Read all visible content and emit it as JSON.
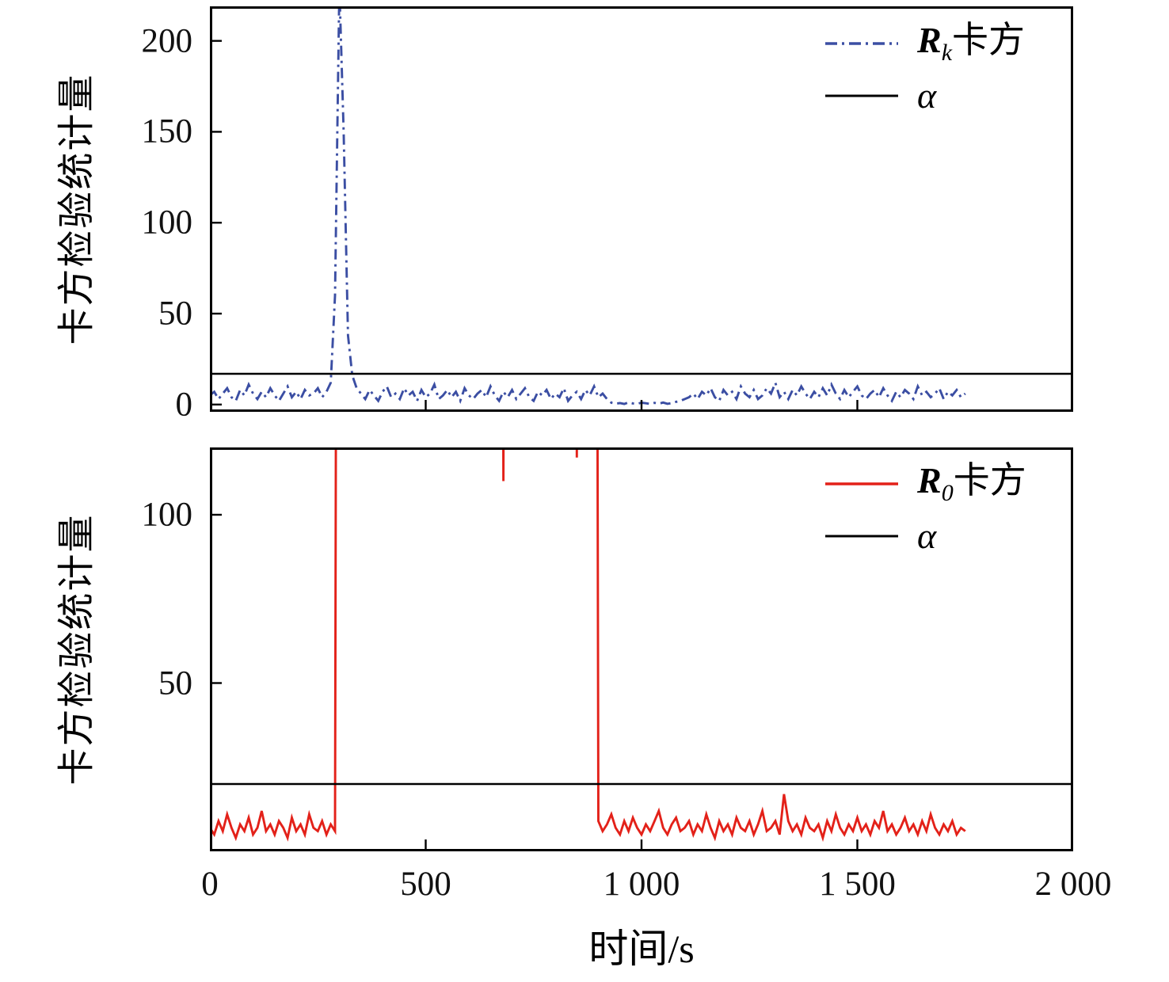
{
  "figure": {
    "background": "#ffffff"
  },
  "chart_data": [
    {
      "type": "line",
      "title": "",
      "ylabel": "卡方检验统计量",
      "xlabel": "",
      "xlim": [
        0,
        2000
      ],
      "ylim": [
        -4,
        219
      ],
      "grid": false,
      "legend_position": "upper-right-inside",
      "x_ticks": [
        500,
        1000,
        1500
      ],
      "y_ticks": [
        0,
        50,
        100,
        150,
        200
      ],
      "y_tick_labels": [
        "0",
        "50",
        "100",
        "150",
        "200"
      ],
      "legend": [
        {
          "label_main": "R",
          "label_sub": "k",
          "label_suffix": "卡方"
        },
        {
          "label": "α"
        }
      ],
      "series": [
        {
          "key": "rk-chi-square",
          "name": "Rk卡方",
          "color": "#3b4ea3",
          "style": "dashdot",
          "x0": 0,
          "dx": 10,
          "values": [
            5,
            7,
            3,
            6,
            9,
            4,
            2,
            8,
            5,
            11,
            6,
            3,
            7,
            4,
            9,
            5,
            2,
            6,
            10,
            4,
            7,
            3,
            8,
            5,
            6,
            9,
            4,
            7,
            12,
            60,
            230,
            150,
            38,
            16,
            9,
            6,
            3,
            8,
            5,
            2,
            7,
            10,
            4,
            6,
            3,
            9,
            5,
            7,
            2,
            8,
            4,
            6,
            11,
            3,
            5,
            8,
            4,
            7,
            2,
            9,
            5,
            3,
            6,
            8,
            4,
            10,
            5,
            2,
            7,
            4,
            8,
            3,
            6,
            9,
            4,
            2,
            7,
            5,
            8,
            3,
            6,
            4,
            9,
            2,
            5,
            7,
            3,
            8,
            5,
            10,
            4,
            6,
            3,
            1,
            0.5,
            0.8,
            0.3,
            1.2,
            0.6,
            0.4,
            1,
            0.7,
            0.3,
            0.9,
            0.5,
            1.1,
            0.4,
            0.8,
            1.5,
            2,
            3,
            4,
            6,
            3,
            7,
            5,
            9,
            4,
            2,
            8,
            5,
            7,
            3,
            10,
            6,
            4,
            8,
            3,
            5,
            9,
            6,
            12,
            4,
            7,
            3,
            8,
            5,
            10,
            6,
            3,
            7,
            4,
            9,
            5,
            11,
            6,
            3,
            8,
            4,
            7,
            10,
            5,
            3,
            6,
            8,
            4,
            9,
            5,
            2,
            7,
            4,
            8,
            6,
            3,
            10,
            5,
            7,
            4,
            6,
            9,
            3,
            7,
            5,
            8,
            4,
            6
          ]
        },
        {
          "key": "alpha-threshold",
          "name": "α",
          "color": "#000000",
          "style": "solid",
          "constant": 16.9
        }
      ]
    },
    {
      "type": "line",
      "title": "",
      "ylabel": "卡方检验统计量",
      "xlabel": "时间/s",
      "xlim": [
        0,
        2000
      ],
      "ylim": [
        0,
        120
      ],
      "grid": false,
      "legend_position": "upper-right-inside",
      "x_ticks": [
        500,
        1000,
        1500
      ],
      "x_label_values": [
        0,
        500,
        1000,
        1500,
        2000
      ],
      "x_tick_labels": [
        "0",
        "500",
        "1 000",
        "1 500",
        "2 000"
      ],
      "y_ticks": [
        50,
        100
      ],
      "y_tick_labels": [
        "50",
        "100"
      ],
      "legend": [
        {
          "label_main": "R",
          "label_sub": "0",
          "label_suffix": "卡方"
        },
        {
          "label": "α"
        }
      ],
      "series": [
        {
          "key": "r0-chi-square",
          "name": "R0卡方",
          "color": "#e32119",
          "style": "solid",
          "x0": 0,
          "dx": 10,
          "values": [
            7,
            5,
            9,
            6,
            11,
            7,
            4,
            8,
            6,
            10,
            5,
            7,
            12,
            6,
            8,
            5,
            9,
            7,
            4,
            10,
            6,
            8,
            5,
            11,
            7,
            6,
            9,
            5,
            8,
            6,
            600,
            600,
            600,
            600,
            600,
            600,
            600,
            600,
            600,
            600,
            600,
            600,
            600,
            600,
            600,
            600,
            600,
            600,
            600,
            600,
            600,
            600,
            600,
            600,
            600,
            600,
            600,
            600,
            600,
            600,
            600,
            600,
            600,
            600,
            600,
            600,
            600,
            600,
            110,
            600,
            600,
            600,
            600,
            600,
            600,
            600,
            600,
            600,
            600,
            600,
            600,
            600,
            600,
            600,
            600,
            117,
            600,
            600,
            600,
            600,
            9,
            6,
            8,
            11,
            7,
            5,
            9,
            6,
            10,
            7,
            5,
            8,
            6,
            9,
            12,
            7,
            5,
            8,
            10,
            6,
            7,
            9,
            5,
            8,
            6,
            11,
            7,
            4,
            9,
            6,
            8,
            5,
            10,
            7,
            6,
            9,
            5,
            8,
            12,
            6,
            7,
            9,
            5,
            17,
            9,
            6,
            8,
            5,
            10,
            7,
            6,
            8,
            4,
            9,
            6,
            11,
            7,
            5,
            8,
            6,
            10,
            6,
            8,
            5,
            9,
            7,
            12,
            6,
            8,
            5,
            7,
            10,
            6,
            8,
            5,
            9,
            6,
            11,
            7,
            5,
            8,
            6,
            9,
            5,
            7,
            6
          ]
        },
        {
          "key": "alpha-threshold",
          "name": "α",
          "color": "#000000",
          "style": "solid",
          "constant": 20
        }
      ]
    }
  ]
}
